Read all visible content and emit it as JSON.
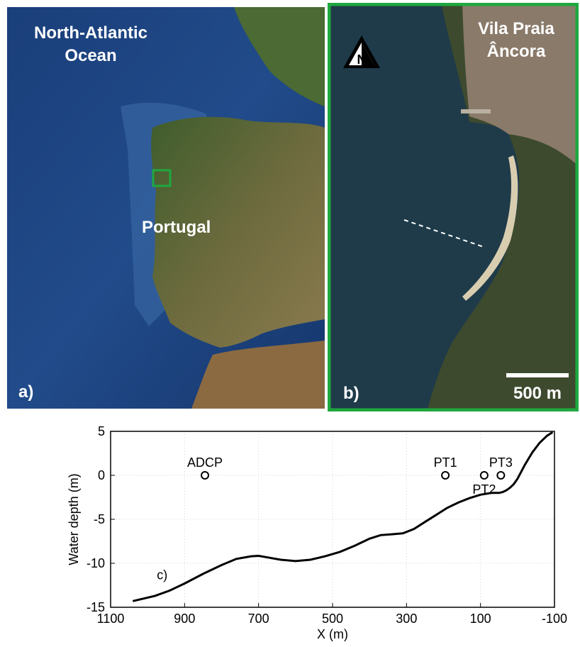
{
  "panel_a": {
    "label": "a)",
    "ocean_label_line1": "North-Atlantic",
    "ocean_label_line2": "Ocean",
    "country_label": "Portugal",
    "inset_box_color": "#1fa83f"
  },
  "panel_b": {
    "label": "b)",
    "place_line1": "Vila Praia",
    "place_line2": "Âncora",
    "north_letter": "N",
    "scale_label": "500 m",
    "frame_color": "#1fa83f"
  },
  "chart_data": {
    "type": "line",
    "label": "c)",
    "xlabel": "X (m)",
    "ylabel": "Water depth (m)",
    "xlim": [
      1100,
      -100
    ],
    "ylim": [
      -15,
      5
    ],
    "xticks": [
      1100,
      900,
      700,
      500,
      300,
      100,
      -100
    ],
    "yticks": [
      5,
      0,
      -5,
      -10,
      -15
    ],
    "grid": true,
    "profile": {
      "x": [
        1040,
        980,
        940,
        900,
        850,
        800,
        760,
        720,
        700,
        680,
        640,
        600,
        560,
        520,
        480,
        440,
        400,
        370,
        340,
        310,
        280,
        250,
        220,
        190,
        160,
        130,
        100,
        70,
        50,
        40,
        30,
        20,
        10,
        0,
        -20,
        -40,
        -60,
        -80,
        -95
      ],
      "y": [
        -14.3,
        -13.7,
        -13.1,
        -12.3,
        -11.2,
        -10.2,
        -9.5,
        -9.2,
        -9.15,
        -9.3,
        -9.6,
        -9.75,
        -9.6,
        -9.2,
        -8.7,
        -8.0,
        -7.2,
        -6.8,
        -6.7,
        -6.6,
        -6.1,
        -5.3,
        -4.5,
        -3.7,
        -3.1,
        -2.6,
        -2.2,
        -2.0,
        -2.0,
        -1.9,
        -1.7,
        -1.4,
        -1.0,
        -0.4,
        1.2,
        2.6,
        3.7,
        4.5,
        4.9
      ]
    },
    "instruments": [
      {
        "name": "ADCP",
        "x": 845,
        "y": 0,
        "label_pos": "above"
      },
      {
        "name": "PT1",
        "x": 195,
        "y": 0,
        "label_pos": "above"
      },
      {
        "name": "PT2",
        "x": 90,
        "y": 0,
        "label_pos": "below"
      },
      {
        "name": "PT3",
        "x": 45,
        "y": 0,
        "label_pos": "above"
      }
    ]
  }
}
